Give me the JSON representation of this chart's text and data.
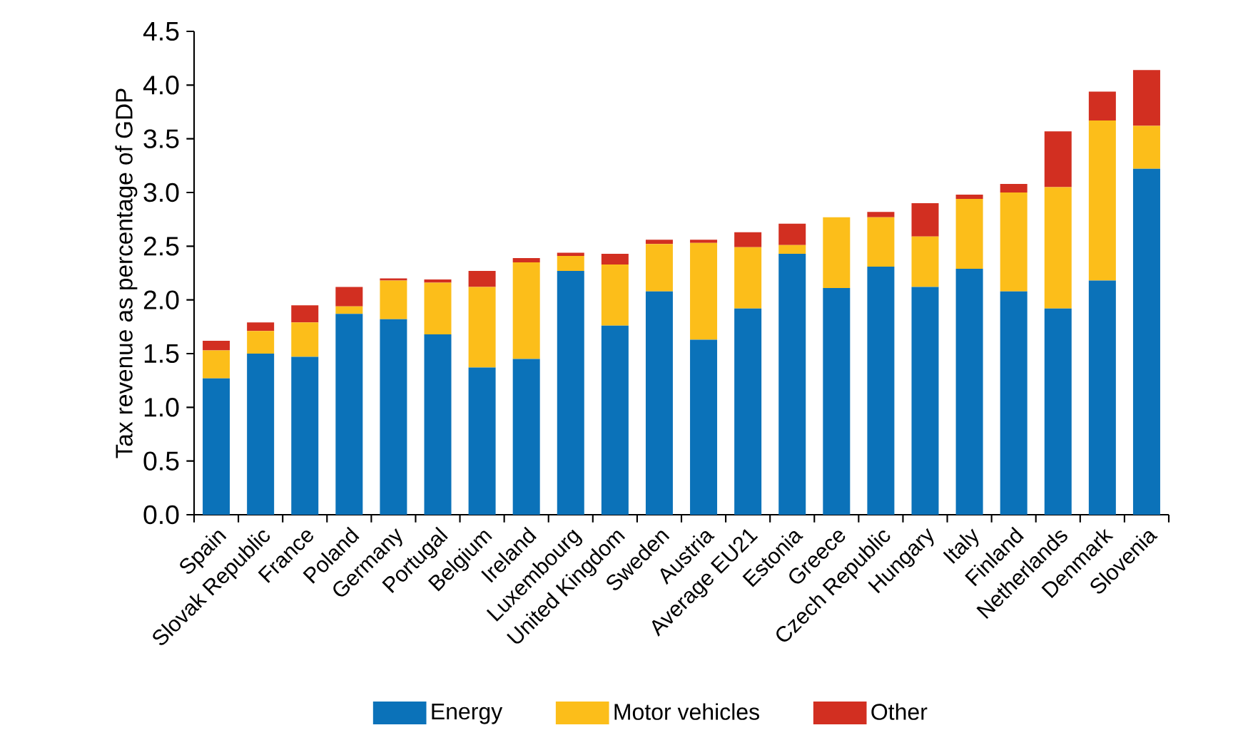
{
  "chart_data": {
    "type": "bar",
    "stacked": true,
    "ylabel": "Tax revenue as percentage of GDP",
    "categories": [
      "Spain",
      "Slovak Republic",
      "France",
      "Poland",
      "Germany",
      "Portugal",
      "Belgium",
      "Ireland",
      "Luxembourg",
      "United Kingdom",
      "Sweden",
      "Austria",
      "Average EU21",
      "Estonia",
      "Greece",
      "Czech Republic",
      "Hungary",
      "Italy",
      "Finland",
      "Netherlands",
      "Denmark",
      "Slovenia"
    ],
    "series": [
      {
        "name": "Energy",
        "color": "#0b72b9",
        "values": [
          1.27,
          1.5,
          1.47,
          1.87,
          1.82,
          1.68,
          1.37,
          1.45,
          2.27,
          1.76,
          2.08,
          1.63,
          1.92,
          2.43,
          2.11,
          2.31,
          2.12,
          2.29,
          2.08,
          1.92,
          2.18,
          3.22
        ]
      },
      {
        "name": "Motor vehicles",
        "color": "#fcbe1a",
        "values": [
          0.26,
          0.21,
          0.32,
          0.07,
          0.36,
          0.48,
          0.75,
          0.9,
          0.14,
          0.57,
          0.44,
          0.9,
          0.57,
          0.08,
          0.66,
          0.46,
          0.47,
          0.65,
          0.92,
          1.13,
          1.49,
          0.4
        ]
      },
      {
        "name": "Other",
        "color": "#d22f21",
        "values": [
          0.09,
          0.08,
          0.16,
          0.18,
          0.02,
          0.03,
          0.15,
          0.04,
          0.03,
          0.1,
          0.04,
          0.03,
          0.14,
          0.2,
          0.0,
          0.05,
          0.31,
          0.04,
          0.08,
          0.52,
          0.27,
          0.52
        ]
      }
    ],
    "ylim": [
      0,
      4.5
    ],
    "yticks": [
      {
        "value": 0,
        "label": "0.0"
      },
      0.5,
      {
        "value": 1,
        "label": "1.0"
      },
      1.5,
      {
        "value": 2,
        "label": "2.0"
      },
      2.5,
      {
        "value": 3,
        "label": "3.0"
      },
      3.5,
      {
        "value": 4,
        "label": "4.0"
      },
      4.5
    ],
    "grid": false,
    "legend": "bottom"
  }
}
